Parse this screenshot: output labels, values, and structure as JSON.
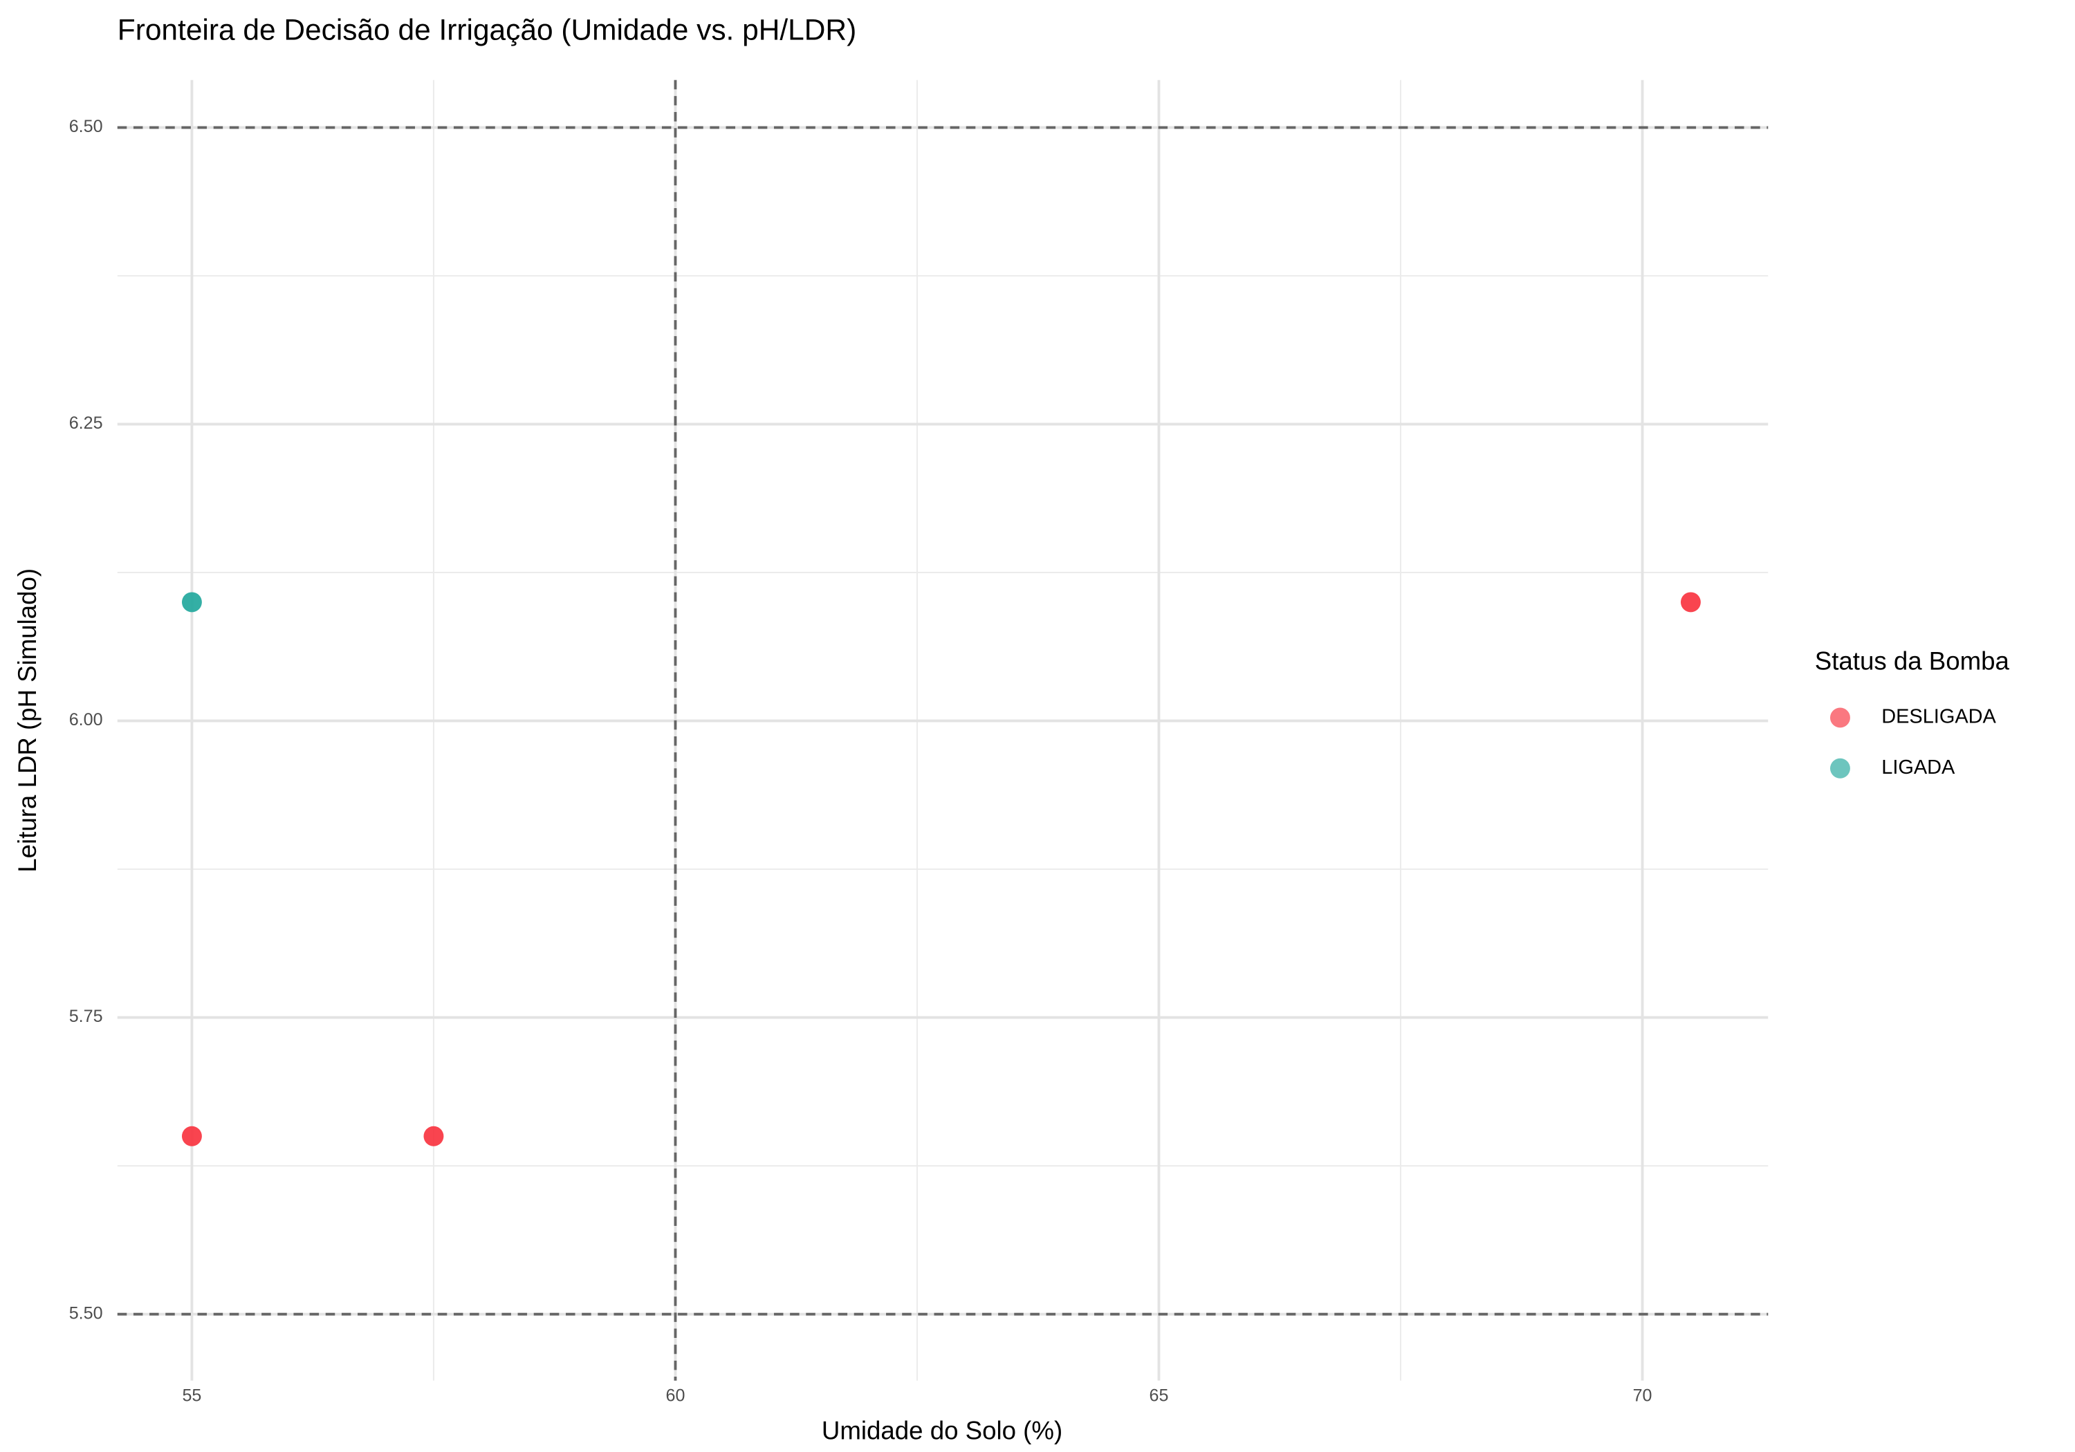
{
  "chart_data": {
    "type": "scatter",
    "title": "Fronteira de Decisão de Irrigação (Umidade vs. pH/LDR)",
    "x_label": "Umidade do Solo (%)",
    "y_label": "Leitura LDR (pH Simulado)",
    "legend_title": "Status da Bomba",
    "legend_position": "right",
    "grid": true,
    "xlim": [
      54.23,
      71.3
    ],
    "ylim": [
      5.444,
      6.54
    ],
    "xticks": [
      55,
      60,
      65,
      70
    ],
    "yticks": [
      {
        "value": 5.5,
        "label": "5.50"
      },
      {
        "value": 5.75,
        "label": "5.75"
      },
      {
        "value": 6.0,
        "label": "6.00"
      },
      {
        "value": 6.25,
        "label": "6.25"
      },
      {
        "value": 6.5,
        "label": "6.50"
      }
    ],
    "x_minor_grid": [
      57.5,
      62.5,
      67.5
    ],
    "y_minor_grid": [
      5.625,
      5.875,
      6.125,
      6.375
    ],
    "vlines": [
      60
    ],
    "hlines": [
      5.5,
      6.5
    ],
    "series": [
      {
        "name": "DESLIGADA",
        "color": "#f8303c",
        "x": [
          55,
          57.5,
          70.5
        ],
        "values": [
          5.65,
          5.65,
          6.1
        ]
      },
      {
        "name": "LIGADA",
        "color": "#1ea69b",
        "x": [
          55
        ],
        "values": [
          6.1
        ]
      }
    ]
  }
}
